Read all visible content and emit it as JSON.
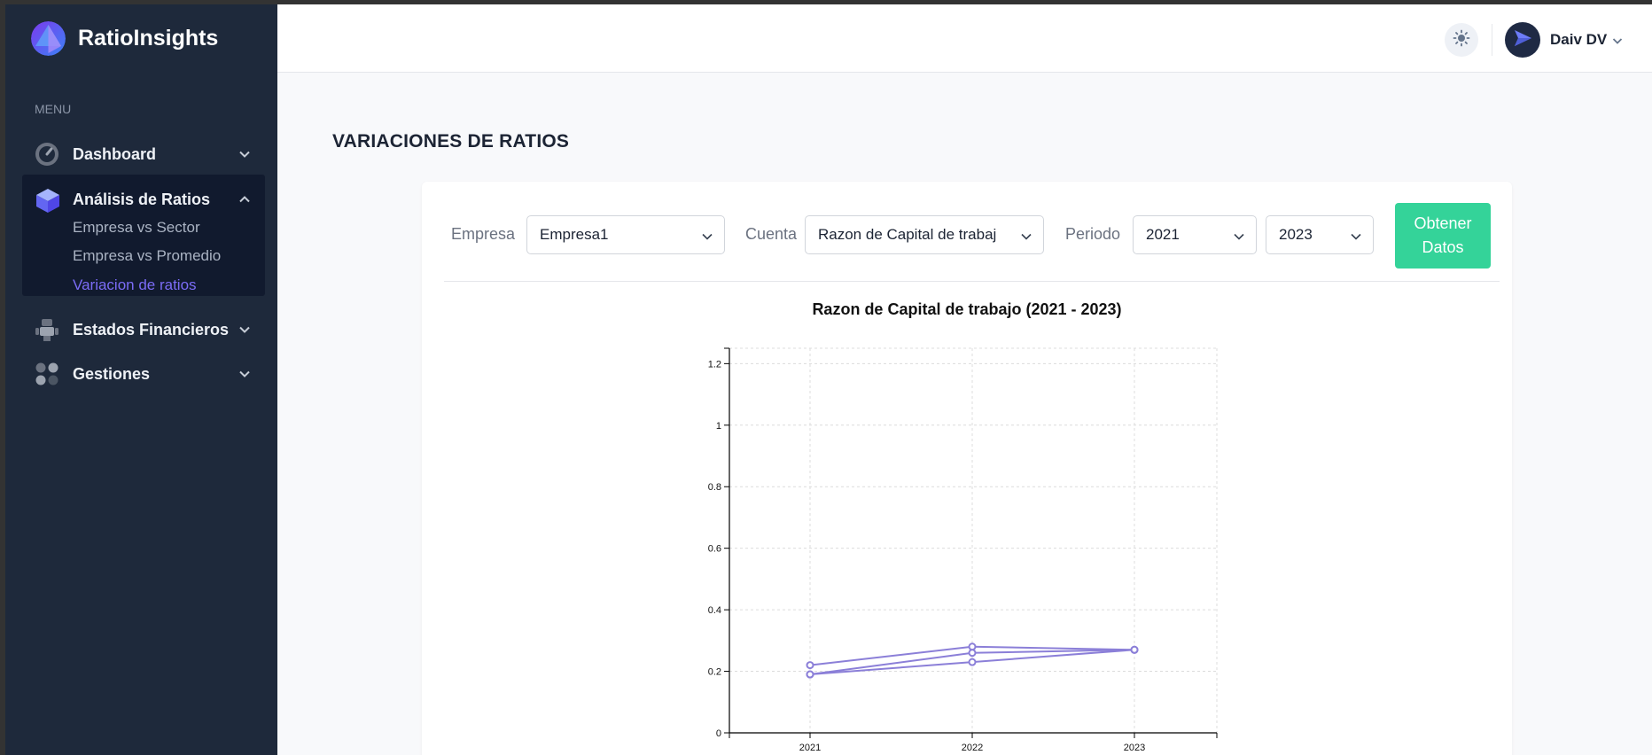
{
  "brand": {
    "name": "RatioInsights"
  },
  "sidebar": {
    "menu_label": "MENU",
    "items": [
      {
        "label": "Dashboard",
        "icon": "dashboard-gauge-icon",
        "expanded": false
      },
      {
        "label": "Análisis de Ratios",
        "icon": "cube-icon",
        "expanded": true,
        "children": [
          "Empresa vs Sector",
          "Empresa vs Promedio",
          "Variacion de ratios"
        ],
        "active_child": "Variacion de ratios"
      },
      {
        "label": "Estados Financieros",
        "icon": "robot-icon",
        "expanded": false
      },
      {
        "label": "Gestiones",
        "icon": "grid-dots-icon",
        "expanded": false
      }
    ]
  },
  "header": {
    "theme_icon": "sun-icon",
    "user_name": "Daiv DV"
  },
  "page": {
    "title": "VARIACIONES DE RATIOS"
  },
  "filters": {
    "empresa_label": "Empresa",
    "empresa_value": "Empresa1",
    "cuenta_label": "Cuenta",
    "cuenta_value": "Razon de Capital de trabaj",
    "periodo_label": "Periodo",
    "periodo_start": "2021",
    "periodo_end": "2023",
    "submit_label": "Obtener Datos"
  },
  "colors": {
    "sidebar_bg": "#1e293b",
    "accent": "#7b6cf6",
    "button": "#34d399",
    "line": "#8b7fd8"
  },
  "chart_data": {
    "type": "line",
    "title": "Razon de Capital de trabajo (2021 - 2023)",
    "x": [
      "2021",
      "2022",
      "2023"
    ],
    "series": [
      {
        "values": [
          0.22,
          0.28,
          0.27
        ]
      },
      {
        "values": [
          0.19,
          0.26,
          0.27
        ]
      },
      {
        "values": [
          0.19,
          0.23,
          0.27
        ]
      }
    ],
    "ylim": [
      0,
      1.25
    ],
    "yticks": [
      0,
      0.2,
      0.4,
      0.6,
      0.8,
      1,
      1.2
    ],
    "grid": true
  }
}
